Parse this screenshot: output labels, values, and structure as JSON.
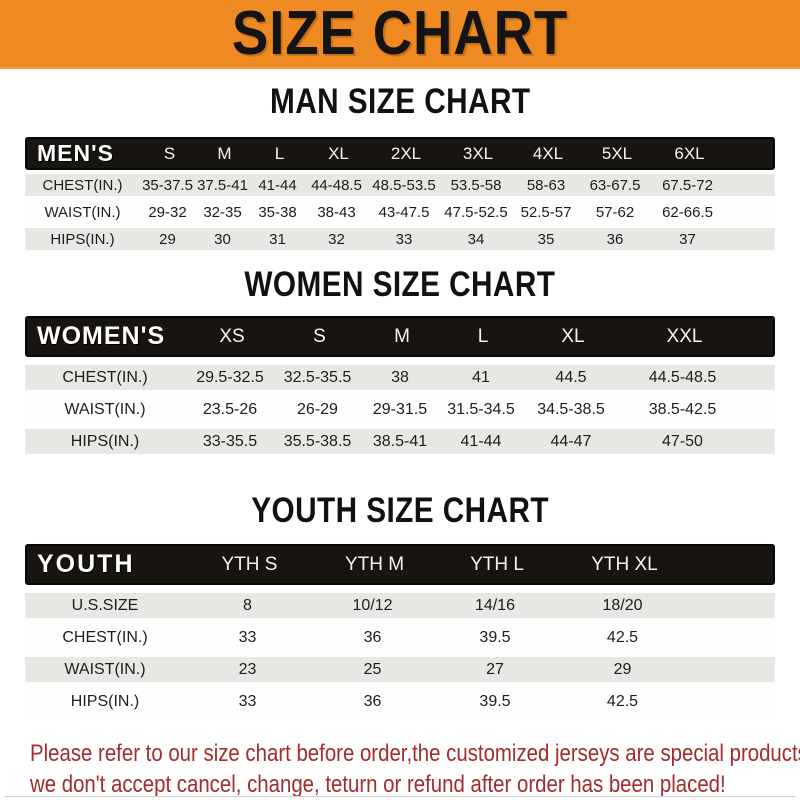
{
  "banner": {
    "title": "SIZE CHART"
  },
  "sections": [
    {
      "id": "men",
      "heading": "MAN SIZE CHART",
      "table": {
        "label": "MEN'S",
        "columns": [
          "S",
          "M",
          "L",
          "XL",
          "2XL",
          "3XL",
          "4XL",
          "5XL",
          "6XL"
        ],
        "rows": [
          {
            "label": "CHEST(IN.)",
            "values": [
              "35-37.5",
              "37.5-41",
              "41-44",
              "44-48.5",
              "48.5-53.5",
              "53.5-58",
              "58-63",
              "63-67.5",
              "67.5-72"
            ]
          },
          {
            "label": "WAIST(IN.)",
            "values": [
              "29-32",
              "32-35",
              "35-38",
              "38-43",
              "43-47.5",
              "47.5-52.5",
              "52.5-57",
              "57-62",
              "62-66.5"
            ]
          },
          {
            "label": "HIPS(IN.)",
            "values": [
              "29",
              "30",
              "31",
              "32",
              "33",
              "34",
              "35",
              "36",
              "37"
            ]
          }
        ]
      }
    },
    {
      "id": "women",
      "heading": "WOMEN SIZE CHART",
      "table": {
        "label": "WOMEN'S",
        "columns": [
          "XS",
          "S",
          "M",
          "L",
          "XL",
          "XXL"
        ],
        "rows": [
          {
            "label": "CHEST(IN.)",
            "values": [
              "29.5-32.5",
              "32.5-35.5",
              "38",
              "41",
              "44.5",
              "44.5-48.5"
            ]
          },
          {
            "label": "WAIST(IN.)",
            "values": [
              "23.5-26",
              "26-29",
              "29-31.5",
              "31.5-34.5",
              "34.5-38.5",
              "38.5-42.5"
            ]
          },
          {
            "label": "HIPS(IN.)",
            "values": [
              "33-35.5",
              "35.5-38.5",
              "38.5-41",
              "41-44",
              "44-47",
              "47-50"
            ]
          }
        ]
      }
    },
    {
      "id": "youth",
      "heading": "YOUTH SIZE CHART",
      "table": {
        "label": "YOUTH",
        "columns": [
          "YTH S",
          "YTH M",
          "YTH L",
          "YTH XL"
        ],
        "rows": [
          {
            "label": "U.S.SIZE",
            "values": [
              "8",
              "10/12",
              "14/16",
              "18/20"
            ]
          },
          {
            "label": "CHEST(IN.)",
            "values": [
              "33",
              "36",
              "39.5",
              "42.5"
            ]
          },
          {
            "label": "WAIST(IN.)",
            "values": [
              "23",
              "25",
              "27",
              "29"
            ]
          },
          {
            "label": "HIPS(IN.)",
            "values": [
              "33",
              "36",
              "39.5",
              "42.5"
            ]
          }
        ]
      }
    }
  ],
  "footer": {
    "line1": "Please refer to our size chart before order,the customized jerseys are special products,",
    "line2": "we don't accept cancel, change, teturn or refund after order has been placed!"
  },
  "colors": {
    "banner_bg": "#EE8A21",
    "banner_text": "#141414",
    "bar_bg": "#18140F",
    "bar_text": "#FFFFFF",
    "row_alt_bg": "#E8E7E4",
    "footer_text": "#A32C2C"
  }
}
